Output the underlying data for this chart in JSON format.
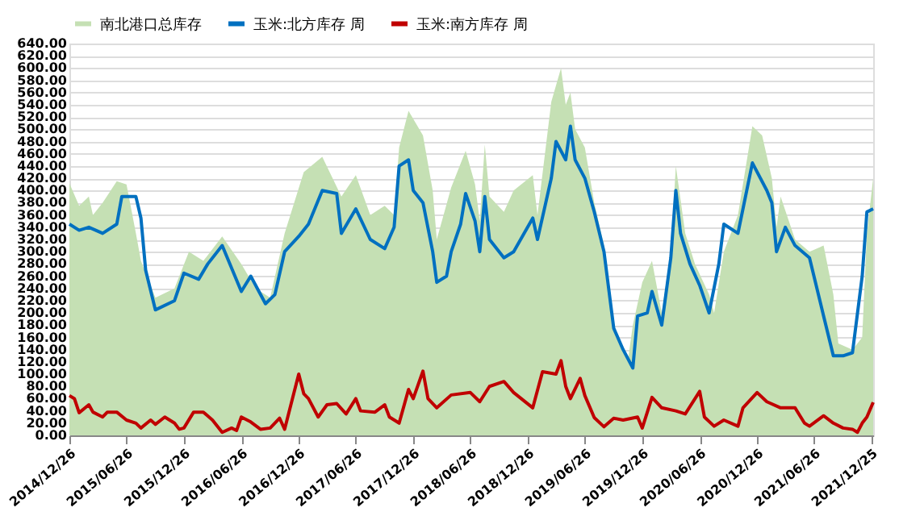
{
  "chart_data": {
    "type": "line",
    "xlim": [
      "2014-12-26",
      "2021-12-31"
    ],
    "xticks": [
      {
        "value": "2014-12-26",
        "label": "2014/12/26"
      },
      {
        "value": "2015-06-26",
        "label": "2015/06/26"
      },
      {
        "value": "2015-12-26",
        "label": "2015/12/26"
      },
      {
        "value": "2016-06-26",
        "label": "2016/06/26"
      },
      {
        "value": "2016-12-26",
        "label": "2016/12/26"
      },
      {
        "value": "2017-06-26",
        "label": "2017/06/26"
      },
      {
        "value": "2017-12-26",
        "label": "2017/12/26"
      },
      {
        "value": "2018-06-26",
        "label": "2018/06/26"
      },
      {
        "value": "2018-12-26",
        "label": "2018/12/26"
      },
      {
        "value": "2019-06-26",
        "label": "2019/06/26"
      },
      {
        "value": "2019-12-26",
        "label": "2019/12/26"
      },
      {
        "value": "2020-06-26",
        "label": "2020/06/26"
      },
      {
        "value": "2020-12-26",
        "label": "2020/12/26"
      },
      {
        "value": "2021-06-26",
        "label": "2021/06/26"
      },
      {
        "value": "2021-12-25",
        "label": "2021/12/25"
      }
    ],
    "ylim": [
      0,
      640
    ],
    "yticks": [
      {
        "value": 0,
        "label": "0.00"
      },
      {
        "value": 20,
        "label": "20.00"
      },
      {
        "value": 40,
        "label": "40.00"
      },
      {
        "value": 60,
        "label": "60.00"
      },
      {
        "value": 80,
        "label": "80.00"
      },
      {
        "value": 100,
        "label": "100.00"
      },
      {
        "value": 120,
        "label": "120.00"
      },
      {
        "value": 140,
        "label": "140.00"
      },
      {
        "value": 160,
        "label": "160.00"
      },
      {
        "value": 180,
        "label": "180.00"
      },
      {
        "value": 200,
        "label": "200.00"
      },
      {
        "value": 220,
        "label": "220.00"
      },
      {
        "value": 240,
        "label": "240.00"
      },
      {
        "value": 260,
        "label": "260.00"
      },
      {
        "value": 280,
        "label": "280.00"
      },
      {
        "value": 300,
        "label": "300.00"
      },
      {
        "value": 320,
        "label": "320.00"
      },
      {
        "value": 340,
        "label": "340.00"
      },
      {
        "value": 360,
        "label": "360.00"
      },
      {
        "value": 380,
        "label": "380.00"
      },
      {
        "value": 400,
        "label": "400.00"
      },
      {
        "value": 420,
        "label": "420.00"
      },
      {
        "value": 440,
        "label": "440.00"
      },
      {
        "value": 460,
        "label": "460.00"
      },
      {
        "value": 480,
        "label": "480.00"
      },
      {
        "value": 500,
        "label": "500.00"
      },
      {
        "value": 520,
        "label": "520.00"
      },
      {
        "value": 540,
        "label": "540.00"
      },
      {
        "value": 560,
        "label": "560.00"
      },
      {
        "value": 580,
        "label": "580.00"
      },
      {
        "value": 600,
        "label": "600.00"
      },
      {
        "value": 620,
        "label": "620.00"
      },
      {
        "value": 640,
        "label": "640.00"
      }
    ],
    "grid": "y",
    "legend": "top",
    "line_style": "solid",
    "series": [
      {
        "name": "南北港口总库存",
        "type": "area",
        "color": "#c5e0b4",
        "x": [
          "2014-12-26",
          "2015-01-26",
          "2015-02-26",
          "2015-03-11",
          "2015-04-11",
          "2015-05-26",
          "2015-06-26",
          "2015-07-26",
          "2015-08-11",
          "2015-09-26",
          "2015-11-26",
          "2016-01-11",
          "2016-02-26",
          "2016-04-26",
          "2016-06-26",
          "2016-08-11",
          "2016-09-26",
          "2016-11-11",
          "2017-01-11",
          "2017-03-11",
          "2017-05-11",
          "2017-06-26",
          "2017-08-11",
          "2017-09-26",
          "2017-10-26",
          "2017-11-11",
          "2017-12-11",
          "2018-01-26",
          "2018-02-26",
          "2018-03-11",
          "2018-04-26",
          "2018-06-11",
          "2018-07-11",
          "2018-07-26",
          "2018-08-11",
          "2018-08-26",
          "2018-10-11",
          "2018-11-11",
          "2019-01-11",
          "2019-01-26",
          "2019-03-11",
          "2019-04-11",
          "2019-04-26",
          "2019-05-11",
          "2019-05-26",
          "2019-06-26",
          "2019-07-26",
          "2019-08-26",
          "2019-09-26",
          "2019-11-11",
          "2019-11-26",
          "2019-12-26",
          "2020-01-26",
          "2020-02-26",
          "2020-03-26",
          "2020-04-11",
          "2020-05-11",
          "2020-06-11",
          "2020-07-26",
          "2020-08-11",
          "2020-09-11",
          "2020-10-26",
          "2020-12-11",
          "2021-01-11",
          "2021-02-11",
          "2021-02-26",
          "2021-03-11",
          "2021-04-26",
          "2021-06-11",
          "2021-07-26",
          "2021-08-26",
          "2021-09-11",
          "2021-10-26",
          "2021-11-26",
          "2021-12-11",
          "2021-12-31"
        ],
        "values": [
          412,
          375,
          390,
          360,
          380,
          415,
          410,
          330,
          285,
          225,
          240,
          300,
          285,
          325,
          280,
          240,
          225,
          330,
          430,
          455,
          390,
          425,
          360,
          375,
          360,
          470,
          530,
          490,
          400,
          320,
          405,
          465,
          410,
          350,
          475,
          390,
          365,
          400,
          425,
          360,
          545,
          600,
          540,
          560,
          500,
          470,
          380,
          310,
          180,
          125,
          180,
          250,
          285,
          200,
          300,
          440,
          330,
          280,
          230,
          200,
          300,
          360,
          505,
          490,
          420,
          340,
          390,
          320,
          300,
          310,
          230,
          150,
          140,
          160,
          330,
          420
        ]
      },
      {
        "name": "玉米:北方库存 周",
        "type": "line",
        "color": "#0070c0",
        "x": [
          "2014-12-26",
          "2015-01-26",
          "2015-02-26",
          "2015-04-11",
          "2015-05-26",
          "2015-06-11",
          "2015-07-26",
          "2015-08-11",
          "2015-08-26",
          "2015-09-26",
          "2015-11-26",
          "2015-12-26",
          "2016-02-11",
          "2016-03-11",
          "2016-04-26",
          "2016-06-26",
          "2016-07-26",
          "2016-09-11",
          "2016-10-11",
          "2016-11-11",
          "2016-12-26",
          "2017-01-26",
          "2017-03-11",
          "2017-04-26",
          "2017-05-11",
          "2017-06-26",
          "2017-08-11",
          "2017-09-26",
          "2017-10-26",
          "2017-11-11",
          "2017-12-11",
          "2017-12-26",
          "2018-01-26",
          "2018-02-26",
          "2018-03-11",
          "2018-04-11",
          "2018-04-26",
          "2018-05-26",
          "2018-06-11",
          "2018-07-11",
          "2018-07-26",
          "2018-08-11",
          "2018-08-26",
          "2018-10-11",
          "2018-11-11",
          "2019-01-11",
          "2019-01-26",
          "2019-03-11",
          "2019-03-26",
          "2019-04-26",
          "2019-05-11",
          "2019-05-26",
          "2019-06-26",
          "2019-07-26",
          "2019-08-26",
          "2019-09-26",
          "2019-10-26",
          "2019-11-26",
          "2019-12-11",
          "2020-01-11",
          "2020-01-26",
          "2020-02-26",
          "2020-03-26",
          "2020-04-11",
          "2020-04-26",
          "2020-05-26",
          "2020-06-26",
          "2020-07-26",
          "2020-08-26",
          "2020-09-11",
          "2020-10-26",
          "2020-12-11",
          "2021-01-26",
          "2021-02-11",
          "2021-02-26",
          "2021-03-26",
          "2021-04-26",
          "2021-06-11",
          "2021-07-26",
          "2021-08-26",
          "2021-09-26",
          "2021-10-26",
          "2021-11-26",
          "2021-12-11",
          "2021-12-31"
        ],
        "values": [
          345,
          335,
          340,
          330,
          345,
          390,
          390,
          355,
          270,
          205,
          220,
          265,
          255,
          280,
          310,
          235,
          260,
          215,
          230,
          300,
          325,
          345,
          400,
          395,
          330,
          370,
          320,
          305,
          340,
          440,
          450,
          400,
          380,
          300,
          250,
          260,
          300,
          345,
          395,
          350,
          300,
          390,
          320,
          290,
          300,
          355,
          320,
          420,
          480,
          450,
          505,
          450,
          420,
          365,
          300,
          175,
          140,
          110,
          195,
          200,
          235,
          180,
          290,
          400,
          330,
          280,
          245,
          200,
          280,
          345,
          330,
          445,
          400,
          380,
          300,
          340,
          310,
          290,
          195,
          130,
          130,
          135,
          260,
          365,
          370
        ]
      },
      {
        "name": "玉米:南方库存 周",
        "type": "line",
        "color": "#c00000",
        "x": [
          "2014-12-26",
          "2015-01-11",
          "2015-01-26",
          "2015-02-26",
          "2015-03-11",
          "2015-04-11",
          "2015-04-26",
          "2015-05-26",
          "2015-06-26",
          "2015-07-26",
          "2015-08-11",
          "2015-09-11",
          "2015-09-26",
          "2015-10-26",
          "2015-11-26",
          "2015-12-11",
          "2015-12-26",
          "2016-01-26",
          "2016-02-26",
          "2016-03-26",
          "2016-04-26",
          "2016-05-26",
          "2016-06-11",
          "2016-06-26",
          "2016-07-26",
          "2016-08-26",
          "2016-09-26",
          "2016-10-26",
          "2016-11-11",
          "2016-12-26",
          "2017-01-11",
          "2017-01-26",
          "2017-02-26",
          "2017-03-26",
          "2017-04-26",
          "2017-05-26",
          "2017-06-26",
          "2017-07-11",
          "2017-08-26",
          "2017-09-26",
          "2017-10-11",
          "2017-11-11",
          "2017-12-11",
          "2017-12-26",
          "2018-01-26",
          "2018-02-11",
          "2018-03-11",
          "2018-04-26",
          "2018-06-26",
          "2018-07-26",
          "2018-08-26",
          "2018-10-11",
          "2018-11-11",
          "2019-01-11",
          "2019-02-11",
          "2019-03-26",
          "2019-04-11",
          "2019-04-26",
          "2019-05-11",
          "2019-06-11",
          "2019-06-26",
          "2019-07-26",
          "2019-08-26",
          "2019-09-26",
          "2019-10-26",
          "2019-12-11",
          "2019-12-26",
          "2020-01-26",
          "2020-02-26",
          "2020-04-11",
          "2020-05-11",
          "2020-06-26",
          "2020-07-11",
          "2020-08-11",
          "2020-09-11",
          "2020-10-26",
          "2020-11-11",
          "2020-12-26",
          "2021-01-26",
          "2021-03-11",
          "2021-04-26",
          "2021-05-26",
          "2021-06-11",
          "2021-07-26",
          "2021-08-26",
          "2021-09-26",
          "2021-10-26",
          "2021-11-11",
          "2021-11-26",
          "2021-12-11",
          "2021-12-31"
        ],
        "values": [
          65,
          60,
          37,
          50,
          38,
          30,
          38,
          38,
          25,
          20,
          12,
          25,
          18,
          30,
          20,
          10,
          12,
          38,
          38,
          25,
          5,
          12,
          8,
          30,
          22,
          10,
          12,
          28,
          10,
          100,
          68,
          60,
          30,
          50,
          52,
          35,
          60,
          40,
          38,
          50,
          30,
          20,
          75,
          60,
          105,
          60,
          45,
          66,
          70,
          55,
          80,
          88,
          70,
          45,
          104,
          100,
          122,
          80,
          60,
          93,
          65,
          29,
          14,
          28,
          25,
          30,
          12,
          62,
          45,
          40,
          35,
          72,
          30,
          15,
          25,
          15,
          45,
          70,
          55,
          45,
          45,
          20,
          15,
          32,
          20,
          12,
          10,
          5,
          20,
          30,
          54
        ]
      }
    ]
  }
}
